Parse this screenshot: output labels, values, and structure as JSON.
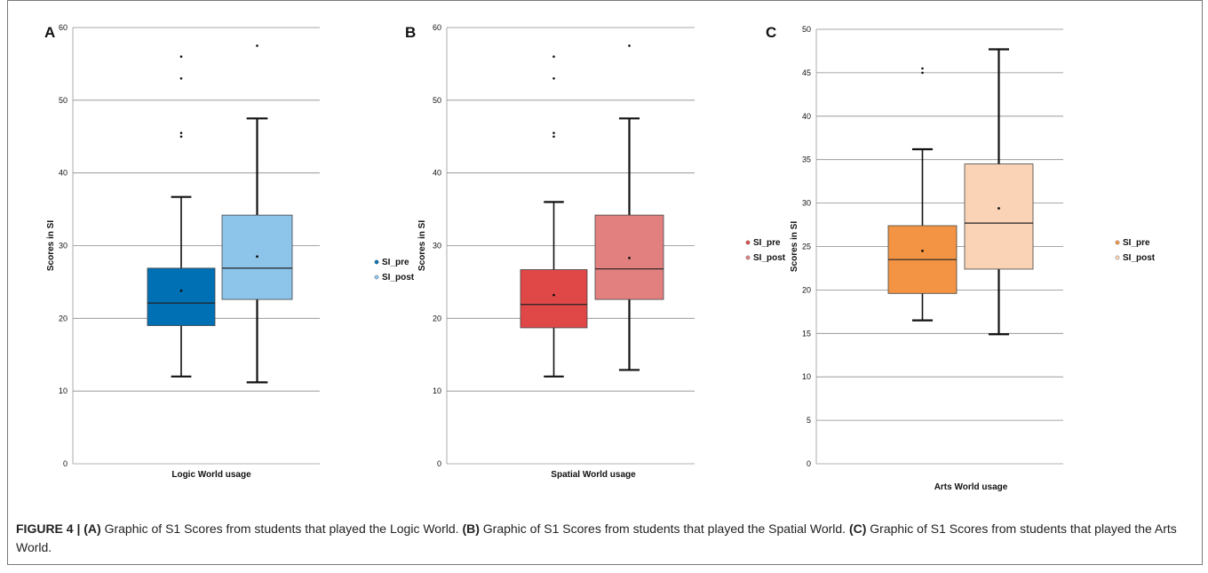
{
  "figure": {
    "caption_lead": "FIGURE 4 |",
    "caption_parts": [
      {
        "tag": "(A)",
        "text": " Graphic of S1 Scores from students that played the Logic World. "
      },
      {
        "tag": "(B)",
        "text": " Graphic of S1 Scores from students that played the Spatial World. "
      },
      {
        "tag": "(C)",
        "text": " Graphic of S1 Scores from students that played the Arts World."
      }
    ]
  },
  "chart_data": [
    {
      "panel": "A",
      "type": "box",
      "xlabel": "Logic World usage",
      "ylabel": "Scores in SI",
      "ylim": [
        0,
        60
      ],
      "yticks": [
        0,
        10,
        20,
        30,
        40,
        50,
        60
      ],
      "grid": true,
      "legend_position": "right",
      "series": [
        {
          "name": "SI_pre",
          "color": "#0070b4",
          "min": 12,
          "q1": 19,
          "median": 22.1,
          "q3": 26.9,
          "max": 36.7,
          "mean": 23.8,
          "outliers": [
            45,
            45.5,
            53,
            56
          ]
        },
        {
          "name": "SI_post",
          "color": "#8cc4ea",
          "min": 11.2,
          "q1": 22.6,
          "median": 26.9,
          "q3": 34.2,
          "max": 47.5,
          "mean": 28.5,
          "outliers": [
            57.5
          ]
        }
      ]
    },
    {
      "panel": "B",
      "type": "box",
      "xlabel": "Spatial World usage",
      "ylabel": "Scores in SI",
      "ylim": [
        0,
        60
      ],
      "yticks": [
        0,
        10,
        20,
        30,
        40,
        50,
        60
      ],
      "grid": true,
      "legend_position": "right",
      "series": [
        {
          "name": "SI_pre",
          "color": "#e04848",
          "min": 12,
          "q1": 18.7,
          "median": 21.9,
          "q3": 26.7,
          "max": 36,
          "mean": 23.2,
          "outliers": [
            45,
            45.5,
            53,
            56
          ]
        },
        {
          "name": "SI_post",
          "color": "#e28080",
          "min": 12.9,
          "q1": 22.6,
          "median": 26.8,
          "q3": 34.2,
          "max": 47.5,
          "mean": 28.3,
          "outliers": [
            57.5
          ]
        }
      ]
    },
    {
      "panel": "C",
      "type": "box",
      "xlabel": "Arts World usage",
      "ylabel": "Scores in SI",
      "ylim": [
        0,
        50
      ],
      "yticks": [
        0,
        5,
        10,
        15,
        20,
        25,
        30,
        35,
        40,
        45,
        50
      ],
      "grid": true,
      "legend_position": "right",
      "series": [
        {
          "name": "SI_pre",
          "color": "#f39444",
          "min": 16.5,
          "q1": 19.6,
          "median": 23.5,
          "q3": 27.4,
          "max": 36.2,
          "mean": 24.5,
          "outliers": [
            45,
            45.5
          ]
        },
        {
          "name": "SI_post",
          "color": "#fad3b6",
          "min": 14.9,
          "q1": 22.4,
          "median": 27.7,
          "q3": 34.5,
          "max": 47.7,
          "mean": 29.4,
          "outliers": []
        }
      ]
    }
  ]
}
